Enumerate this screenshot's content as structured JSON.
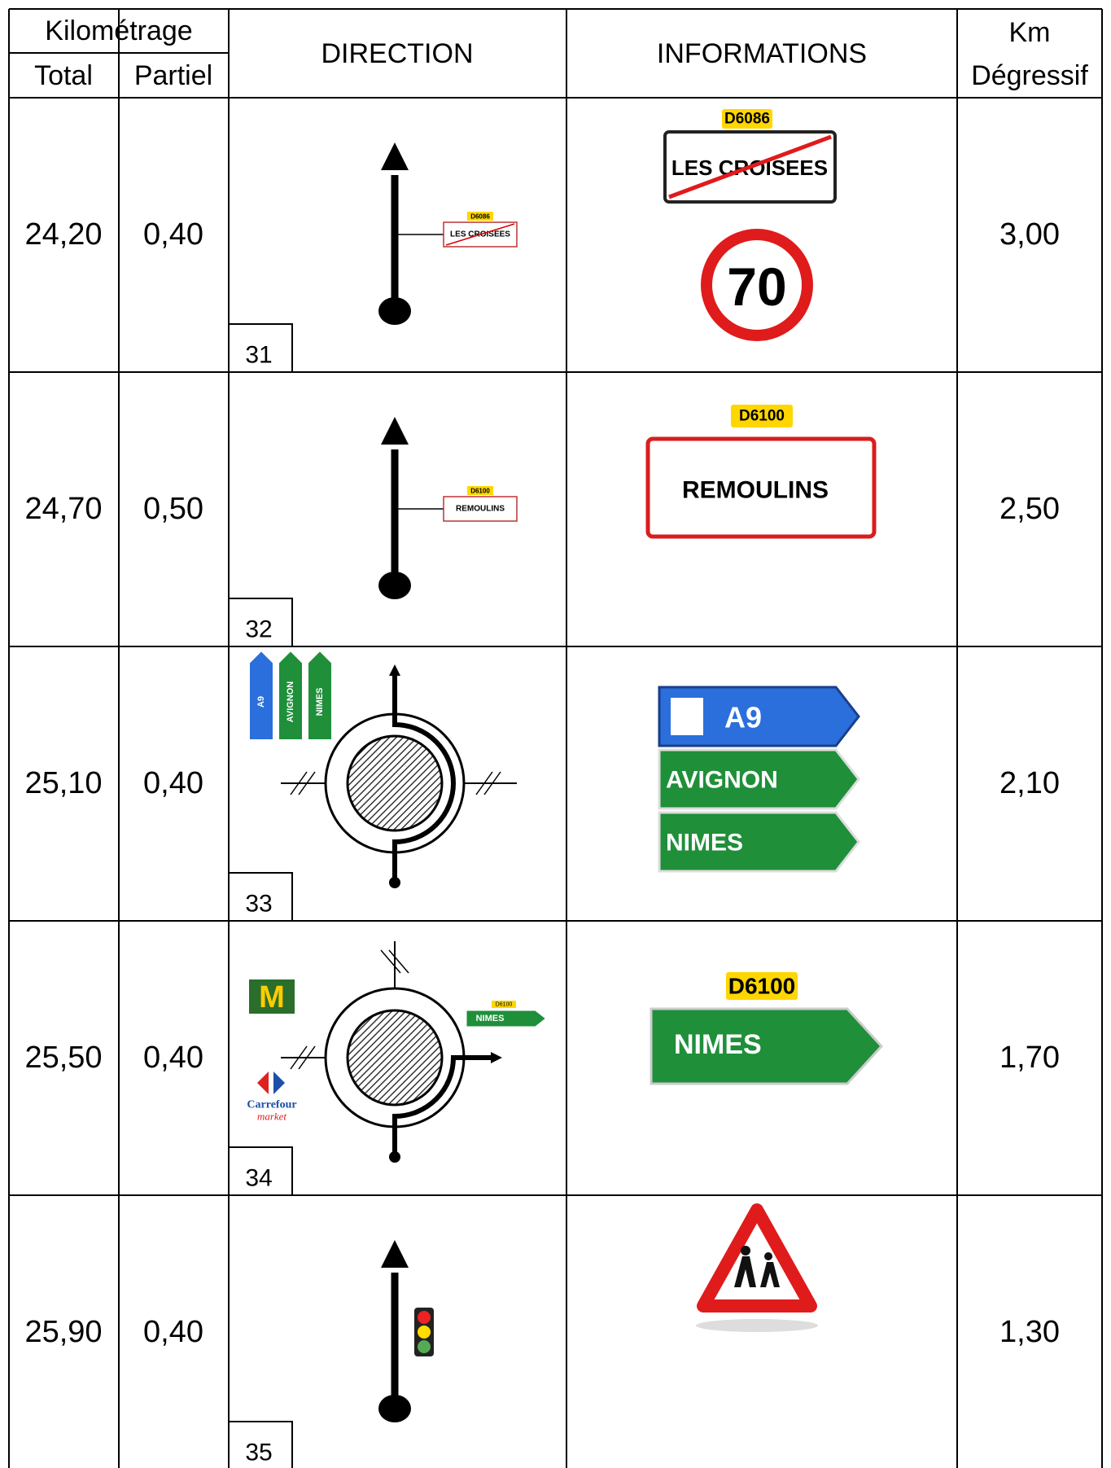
{
  "header": {
    "kilometrage": "Kilométrage",
    "total": "Total",
    "partiel": "Partiel",
    "direction": "DIRECTION",
    "informations": "INFORMATIONS",
    "km": "Km",
    "degressif": "Dégressif"
  },
  "rows": [
    {
      "total": "24,20",
      "partiel": "0,40",
      "step": "31",
      "km_degressif": "3,00",
      "direction": {
        "type": "straight",
        "route": "D6086",
        "sign": "LES CROISEES"
      },
      "informations": {
        "type": "end-town",
        "route": "D6086",
        "sign": "LES CROISEES",
        "speed_limit": "70"
      }
    },
    {
      "total": "24,70",
      "partiel": "0,50",
      "step": "32",
      "km_degressif": "2,50",
      "direction": {
        "type": "straight",
        "route": "D6100",
        "sign": "REMOULINS"
      },
      "informations": {
        "type": "town",
        "route": "D6100",
        "sign": "REMOULINS"
      }
    },
    {
      "total": "25,10",
      "partiel": "0,40",
      "step": "33",
      "km_degressif": "2,10",
      "direction": {
        "type": "roundabout-straight",
        "signs": [
          "A9",
          "AVIGNON",
          "NIMES"
        ]
      },
      "informations": {
        "type": "directions",
        "signs": [
          "A9",
          "AVIGNON",
          "NIMES"
        ]
      }
    },
    {
      "total": "25,50",
      "partiel": "0,40",
      "step": "34",
      "km_degressif": "1,70",
      "direction": {
        "type": "roundabout-right",
        "route": "D6100",
        "sign": "NIMES",
        "logo": "M",
        "brand": "Carrefour",
        "brand_sub": "market"
      },
      "informations": {
        "type": "direction",
        "route": "D6100",
        "sign": "NIMES"
      }
    },
    {
      "total": "25,90",
      "partiel": "0,40",
      "step": "35",
      "km_degressif": "1,30",
      "direction": {
        "type": "straight-light"
      },
      "informations": {
        "type": "children"
      }
    }
  ]
}
